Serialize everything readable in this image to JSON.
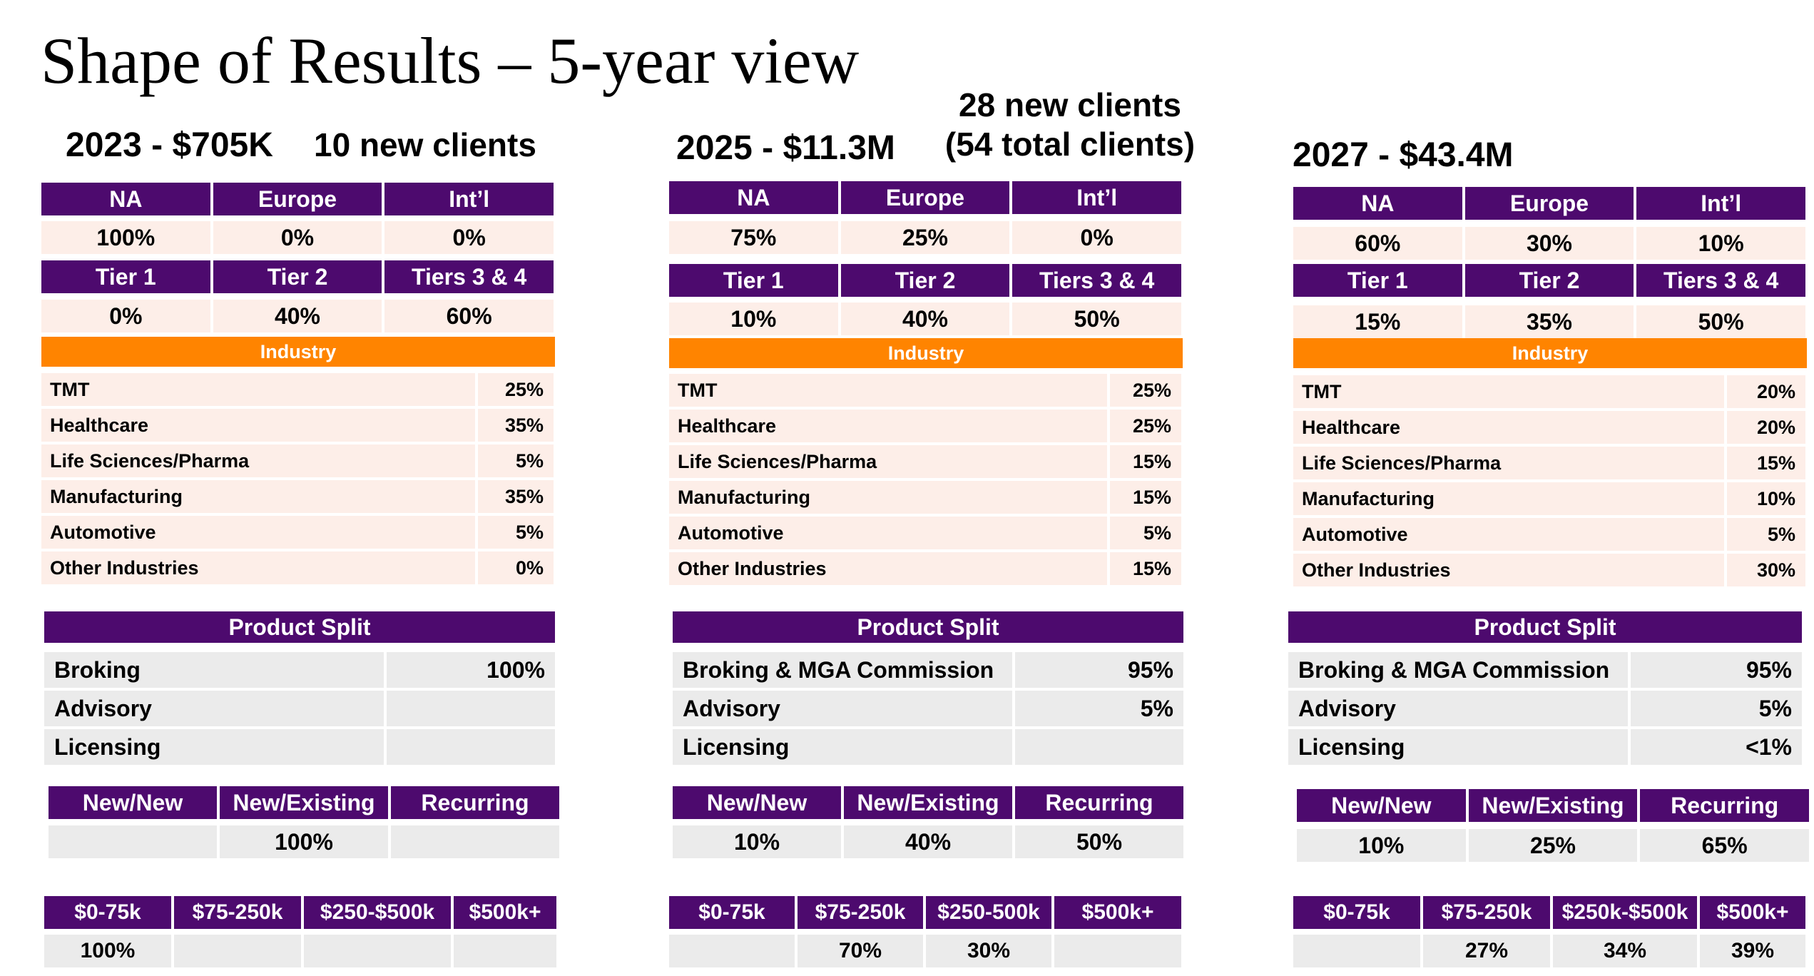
{
  "title": "Shape of Results – 5-year view",
  "columns": [
    {
      "heading": "2023 - $705K",
      "clients_line1": "10 new clients",
      "clients_line2": "",
      "regions": {
        "headers": [
          "NA",
          "Europe",
          "Int’l"
        ],
        "values": [
          "100%",
          "0%",
          "0%"
        ]
      },
      "tiers": {
        "headers": [
          "Tier 1",
          "Tier 2",
          "Tiers 3 & 4"
        ],
        "values": [
          "0%",
          "40%",
          "60%"
        ]
      },
      "industry_header": "Industry",
      "industries": [
        {
          "name": "TMT",
          "pct": "25%"
        },
        {
          "name": "Healthcare",
          "pct": "35%"
        },
        {
          "name": "Life Sciences/Pharma",
          "pct": "5%"
        },
        {
          "name": "Manufacturing",
          "pct": "35%"
        },
        {
          "name": "Automotive",
          "pct": "5%"
        },
        {
          "name": "Other Industries",
          "pct": "0%"
        }
      ],
      "product_header": "Product Split",
      "products": [
        {
          "name": "Broking",
          "pct": "100%"
        },
        {
          "name": "Advisory",
          "pct": ""
        },
        {
          "name": "Licensing",
          "pct": ""
        }
      ],
      "business": {
        "headers": [
          "New/New",
          "New/Existing",
          "Recurring"
        ],
        "values": [
          "",
          "100%",
          ""
        ]
      },
      "deal_size": {
        "headers": [
          "$0-75k",
          "$75-250k",
          "$250-$500k",
          "$500k+"
        ],
        "values": [
          "100%",
          "",
          "",
          ""
        ]
      }
    },
    {
      "heading": "2025 - $11.3M",
      "clients_line1": "28 new clients",
      "clients_line2": "(54 total clients)",
      "regions": {
        "headers": [
          "NA",
          "Europe",
          "Int’l"
        ],
        "values": [
          "75%",
          "25%",
          "0%"
        ]
      },
      "tiers": {
        "headers": [
          "Tier 1",
          "Tier 2",
          "Tiers 3 & 4"
        ],
        "values": [
          "10%",
          "40%",
          "50%"
        ]
      },
      "industry_header": "Industry",
      "industries": [
        {
          "name": "TMT",
          "pct": "25%"
        },
        {
          "name": "Healthcare",
          "pct": "25%"
        },
        {
          "name": "Life Sciences/Pharma",
          "pct": "15%"
        },
        {
          "name": "Manufacturing",
          "pct": "15%"
        },
        {
          "name": "Automotive",
          "pct": "5%"
        },
        {
          "name": "Other Industries",
          "pct": "15%"
        }
      ],
      "product_header": "Product Split",
      "products": [
        {
          "name": "Broking & MGA Commission",
          "pct": "95%"
        },
        {
          "name": "Advisory",
          "pct": "5%"
        },
        {
          "name": "Licensing",
          "pct": ""
        }
      ],
      "business": {
        "headers": [
          "New/New",
          "New/Existing",
          "Recurring"
        ],
        "values": [
          "10%",
          "40%",
          "50%"
        ]
      },
      "deal_size": {
        "headers": [
          "$0-75k",
          "$75-250k",
          "$250-500k",
          "$500k+"
        ],
        "values": [
          "",
          "70%",
          "30%",
          ""
        ]
      }
    },
    {
      "heading": "2027 - $43.4M",
      "clients_line1": "",
      "clients_line2": "",
      "regions": {
        "headers": [
          "NA",
          "Europe",
          "Int’l"
        ],
        "values": [
          "60%",
          "30%",
          "10%"
        ]
      },
      "tiers": {
        "headers": [
          "Tier 1",
          "Tier 2",
          "Tiers 3 & 4"
        ],
        "values": [
          "15%",
          "35%",
          "50%"
        ]
      },
      "industry_header": "Industry",
      "industries": [
        {
          "name": "TMT",
          "pct": "20%"
        },
        {
          "name": "Healthcare",
          "pct": "20%"
        },
        {
          "name": "Life Sciences/Pharma",
          "pct": "15%"
        },
        {
          "name": "Manufacturing",
          "pct": "10%"
        },
        {
          "name": "Automotive",
          "pct": "5%"
        },
        {
          "name": "Other Industries",
          "pct": "30%"
        }
      ],
      "product_header": "Product Split",
      "products": [
        {
          "name": "Broking & MGA Commission",
          "pct": "95%"
        },
        {
          "name": "Advisory",
          "pct": "5%"
        },
        {
          "name": "Licensing",
          "pct": "<1%"
        }
      ],
      "business": {
        "headers": [
          "New/New",
          "New/Existing",
          "Recurring"
        ],
        "values": [
          "10%",
          "25%",
          "65%"
        ]
      },
      "deal_size": {
        "headers": [
          "$0-75k",
          "$75-250k",
          "$250k-$500k",
          "$500k+"
        ],
        "values": [
          "",
          "27%",
          "34%",
          "39%"
        ]
      }
    }
  ]
}
